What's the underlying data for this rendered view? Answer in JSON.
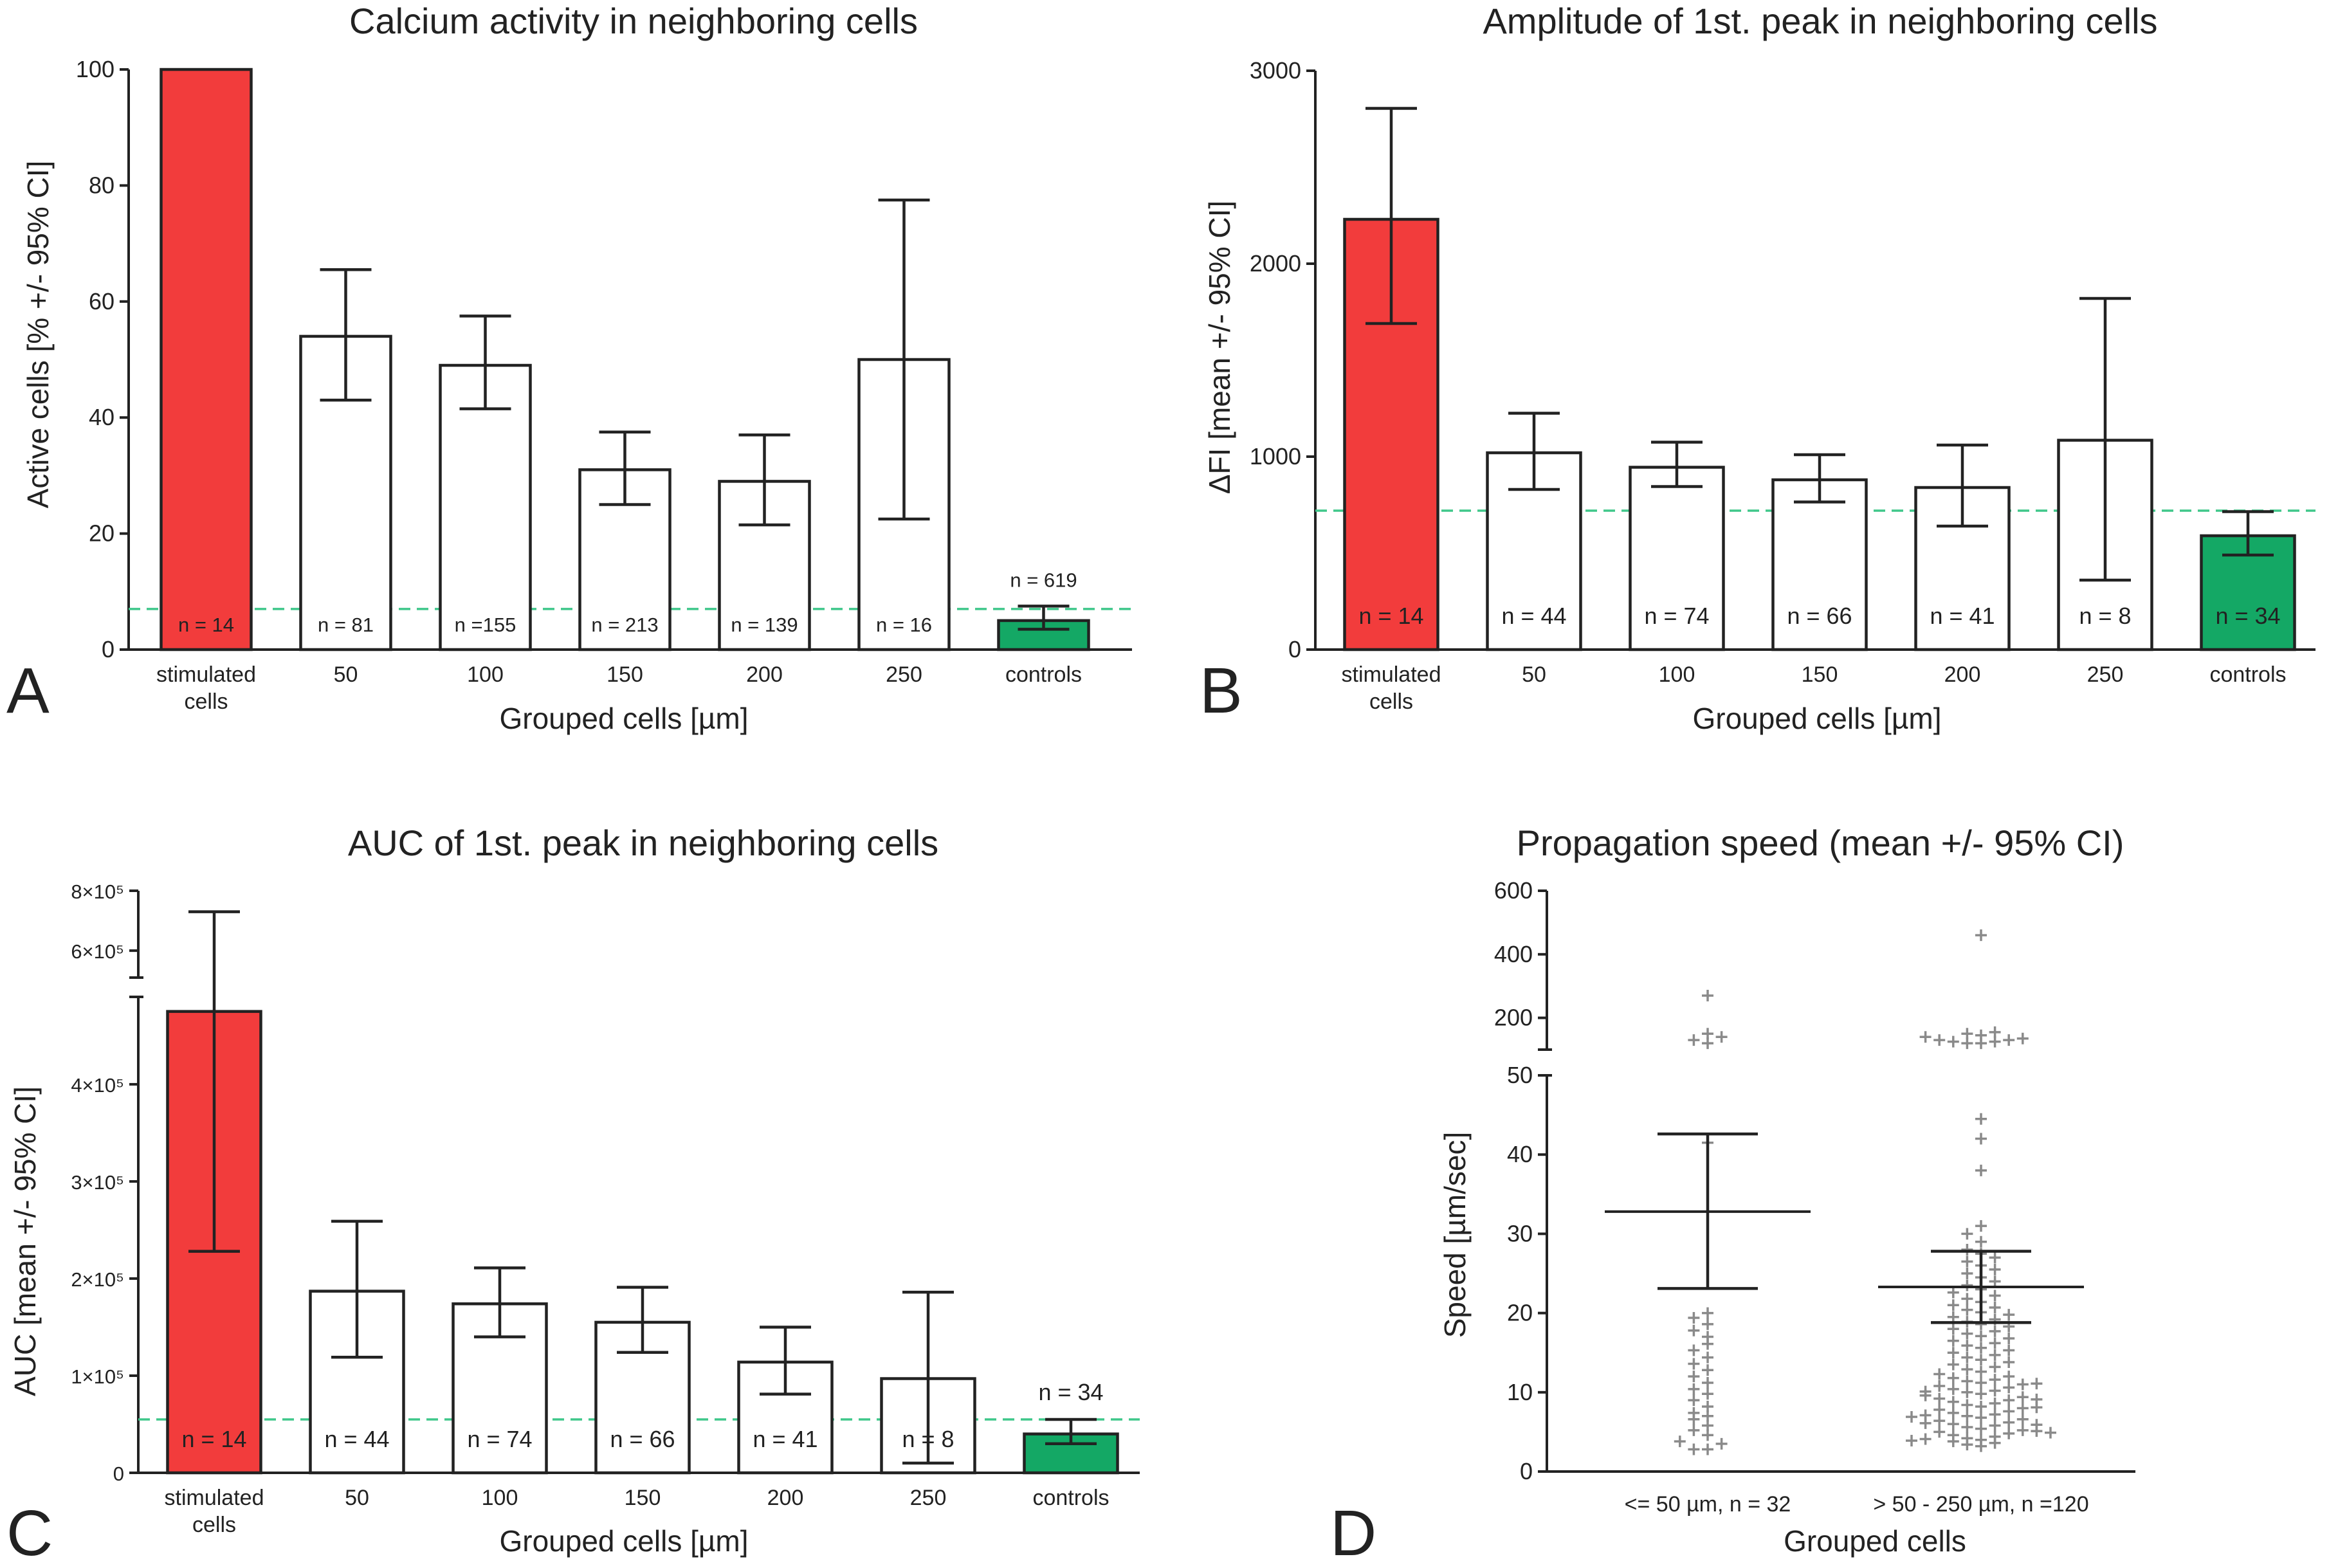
{
  "colors": {
    "stimulated": "#f23c3c",
    "controls": "#14a865",
    "neutral": "#ffffff",
    "reference_line": "#3fc78a",
    "points": "#8a8a8a"
  },
  "chart_data": [
    {
      "panel": "A",
      "type": "bar",
      "title": "Calcium activity in neighboring cells",
      "xlabel": "Grouped cells [µm]",
      "ylabel": "Active cells [% +/- 95% CI]",
      "ylim": [
        0,
        100
      ],
      "yticks": [
        0,
        20,
        40,
        60,
        80,
        100
      ],
      "ytick_labels": [
        "0",
        "20",
        "40",
        "60",
        "80",
        "100"
      ],
      "categories": [
        [
          "stimulated",
          "cells"
        ],
        [
          "50"
        ],
        [
          "100"
        ],
        [
          "150"
        ],
        [
          "200"
        ],
        [
          "250"
        ],
        [
          "controls"
        ]
      ],
      "values": [
        100,
        54,
        49,
        31,
        29,
        50,
        5
      ],
      "ci_low": [
        null,
        43,
        41.5,
        25,
        21.5,
        22.5,
        3.5
      ],
      "ci_high": [
        null,
        65.5,
        57.5,
        37.5,
        37,
        77.5,
        7.5
      ],
      "n_labels": [
        "n = 14",
        "n = 81",
        "n =155",
        "n = 213",
        "n = 139",
        "n = 16",
        "n = 619"
      ],
      "bar_colors": [
        "stimulated",
        "neutral",
        "neutral",
        "neutral",
        "neutral",
        "neutral",
        "controls"
      ],
      "reference_line": 7
    },
    {
      "panel": "B",
      "type": "bar",
      "title": "Amplitude of 1st. peak in neighboring cells",
      "xlabel": "Grouped cells [µm]",
      "ylabel": "ΔFI [mean +/- 95% CI]",
      "ylim": [
        0,
        3000
      ],
      "yticks": [
        0,
        1000,
        2000,
        3000
      ],
      "ytick_labels": [
        "0",
        "1000",
        "2000",
        "3000"
      ],
      "categories": [
        [
          "stimulated",
          "cells"
        ],
        [
          "50"
        ],
        [
          "100"
        ],
        [
          "150"
        ],
        [
          "200"
        ],
        [
          "250"
        ],
        [
          "controls"
        ]
      ],
      "values": [
        2230,
        1020,
        945,
        880,
        840,
        1085,
        590
      ],
      "ci_low": [
        1690,
        830,
        845,
        765,
        640,
        360,
        490
      ],
      "ci_high": [
        2805,
        1225,
        1075,
        1010,
        1060,
        1820,
        715
      ],
      "n_labels": [
        "n = 14",
        "n = 44",
        "n = 74",
        "n = 66",
        "n = 41",
        "n = 8",
        "n = 34"
      ],
      "bar_colors": [
        "stimulated",
        "neutral",
        "neutral",
        "neutral",
        "neutral",
        "neutral",
        "controls"
      ],
      "reference_line": 720
    },
    {
      "panel": "C",
      "type": "bar",
      "title": "AUC of 1st. peak in neighboring cells",
      "xlabel": "Grouped cells [µm]",
      "ylabel": "AUC [mean +/- 95% CI]",
      "ylim_lower": [
        0,
        490000
      ],
      "ylim_upper": [
        510000,
        800000
      ],
      "yticks": [
        0,
        100000,
        200000,
        300000,
        400000,
        600000,
        800000
      ],
      "ytick_labels": [
        "0",
        "1×10⁵",
        "2×10⁵",
        "3×10⁵",
        "4×10⁵",
        "6×10⁵",
        "8×10⁵"
      ],
      "categories": [
        [
          "stimulated",
          "cells"
        ],
        [
          "50"
        ],
        [
          "100"
        ],
        [
          "150"
        ],
        [
          "200"
        ],
        [
          "250"
        ],
        [
          "controls"
        ]
      ],
      "values": [
        475000,
        187000,
        174000,
        155000,
        114000,
        97000,
        40000
      ],
      "ci_low": [
        228000,
        119000,
        140000,
        124000,
        81000,
        10000,
        30000
      ],
      "ci_high": [
        730000,
        259000,
        211000,
        191000,
        150000,
        186000,
        55000
      ],
      "n_labels": [
        "n = 14",
        "n = 44",
        "n = 74",
        "n = 66",
        "n = 41",
        "n = 8",
        "n = 34"
      ],
      "bar_colors": [
        "stimulated",
        "neutral",
        "neutral",
        "neutral",
        "neutral",
        "neutral",
        "controls"
      ],
      "reference_line": 55000
    },
    {
      "panel": "D",
      "type": "scatter",
      "title": "Propagation speed (mean +/- 95% CI)",
      "xlabel": "Grouped cells",
      "ylabel": "Speed [µm/sec]",
      "ylim_lower": [
        0,
        50
      ],
      "ylim_upper": [
        100,
        600
      ],
      "yticks": [
        0,
        10,
        20,
        30,
        40,
        50,
        200,
        400,
        600
      ],
      "ytick_labels": [
        "0",
        "10",
        "20",
        "30",
        "40",
        "50",
        "200",
        "400",
        "600"
      ],
      "categories": [
        "<= 50 µm, n = 32",
        "> 50 - 250 µm, n =120"
      ],
      "means": [
        32.8,
        23.3
      ],
      "ci_low": [
        23.1,
        18.8
      ],
      "ci_high": [
        42.6,
        27.8
      ],
      "series": [
        {
          "name": "<= 50 µm, n = 32",
          "values": [
            2.8,
            2.8,
            3.5,
            3.8,
            4.6,
            5.2,
            5.8,
            6.6,
            7.0,
            7.4,
            8.2,
            9.0,
            9.8,
            10.4,
            11.2,
            12.0,
            12.8,
            13.6,
            14.4,
            15.3,
            16.1,
            17.0,
            17.8,
            18.6,
            19.4,
            20.0,
            41.5,
            120,
            130,
            140,
            150,
            270
          ]
        },
        {
          "name": "> 50 - 250 µm, n =120",
          "values": [
            3.2,
            3.4,
            3.6,
            3.8,
            4.0,
            4.2,
            4.4,
            4.6,
            4.8,
            5.0,
            5.2,
            5.4,
            5.6,
            5.8,
            6.0,
            6.2,
            6.4,
            6.6,
            6.8,
            7.0,
            7.2,
            7.4,
            7.6,
            7.8,
            8.0,
            8.2,
            8.4,
            8.6,
            8.8,
            9.0,
            9.2,
            9.4,
            9.6,
            9.8,
            10.0,
            10.2,
            10.4,
            10.6,
            10.8,
            11.0,
            11.2,
            11.4,
            11.6,
            11.8,
            12.0,
            12.3,
            12.6,
            12.9,
            13.2,
            13.5,
            13.8,
            14.1,
            14.4,
            14.7,
            15.0,
            15.3,
            15.6,
            15.9,
            16.2,
            16.5,
            16.8,
            17.1,
            17.4,
            17.7,
            18.0,
            18.3,
            18.6,
            18.9,
            19.2,
            19.5,
            19.8,
            20.1,
            20.4,
            20.7,
            21.0,
            21.4,
            21.8,
            22.2,
            22.6,
            23.0,
            23.5,
            24.0,
            24.5,
            25.0,
            25.5,
            26.0,
            26.5,
            27.0,
            27.5,
            28.0,
            29.0,
            30.0,
            31.0,
            38.0,
            42.0,
            44.5,
            4.1,
            5.1,
            6.1,
            7.1,
            8.1,
            9.1,
            10.1,
            11.1,
            3.9,
            4.9,
            5.9,
            6.9,
            120,
            120,
            125,
            125,
            130,
            130,
            135,
            140,
            145,
            150,
            155,
            460
          ]
        }
      ]
    }
  ],
  "panel_letters": [
    "A",
    "B",
    "C",
    "D"
  ]
}
